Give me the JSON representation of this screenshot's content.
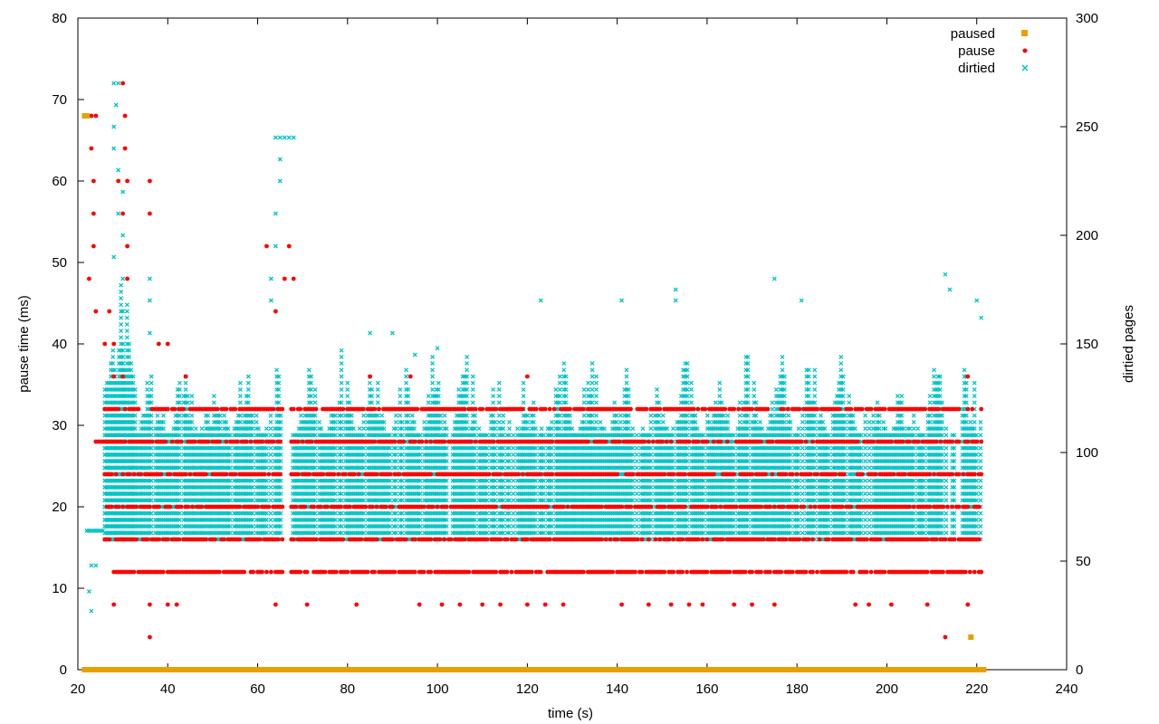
{
  "chart_data": {
    "type": "scatter",
    "xlabel": "time (s)",
    "ylabel": "pause time (ms)",
    "y2label": "dirtied pages",
    "xlim": [
      20,
      240
    ],
    "ylim": [
      0,
      80
    ],
    "y2lim": [
      0,
      300
    ],
    "x_ticks": [
      20,
      40,
      60,
      80,
      100,
      120,
      140,
      160,
      180,
      200,
      220,
      240
    ],
    "y_ticks": [
      0,
      10,
      20,
      30,
      40,
      50,
      60,
      70,
      80
    ],
    "y2_ticks": [
      0,
      50,
      100,
      150,
      200,
      250,
      300
    ],
    "grid": false,
    "legend_position": "top-right",
    "legend": [
      "paused",
      "pause",
      "dirtied"
    ],
    "series": [
      {
        "name": "paused",
        "axis": "y",
        "marker": "square",
        "color": "#e8a000",
        "points": [
          [
            21.5,
            68
          ],
          [
            22.0,
            68
          ],
          [
            218.7,
            4
          ],
          [
            21.5,
            0
          ],
          [
            40,
            0
          ],
          [
            60,
            0
          ],
          [
            80,
            0
          ],
          [
            100,
            0
          ],
          [
            120,
            0
          ],
          [
            140,
            0
          ],
          [
            160,
            0
          ],
          [
            180,
            0
          ],
          [
            200,
            0
          ],
          [
            221.5,
            0
          ]
        ]
      },
      {
        "name": "pause",
        "axis": "y",
        "marker": "circle",
        "color": "#ff0000",
        "points": [
          [
            22,
            68
          ],
          [
            23,
            68
          ],
          [
            24,
            68
          ],
          [
            23,
            64
          ],
          [
            23.5,
            60
          ],
          [
            23.5,
            56
          ],
          [
            23.5,
            52
          ],
          [
            22.5,
            48
          ],
          [
            24,
            44
          ],
          [
            27,
            44
          ],
          [
            30,
            72
          ],
          [
            30.5,
            68
          ],
          [
            29,
            60
          ],
          [
            31,
            60
          ],
          [
            30,
            56
          ],
          [
            31,
            52
          ],
          [
            30.5,
            64
          ],
          [
            31,
            48
          ],
          [
            36,
            60
          ],
          [
            36,
            56
          ],
          [
            36,
            4
          ],
          [
            26,
            40
          ],
          [
            28,
            40
          ],
          [
            38,
            40
          ],
          [
            40,
            40
          ],
          [
            28,
            36
          ],
          [
            30,
            36
          ],
          [
            44,
            36
          ],
          [
            85,
            36
          ],
          [
            94,
            36
          ],
          [
            120,
            36
          ],
          [
            62,
            52
          ],
          [
            64,
            44
          ],
          [
            67,
            52
          ],
          [
            66,
            48
          ],
          [
            68,
            48
          ],
          [
            40,
            8
          ],
          [
            42,
            8
          ],
          [
            64,
            8
          ],
          [
            71,
            8
          ],
          [
            82,
            8
          ],
          [
            96,
            8
          ],
          [
            101,
            8
          ],
          [
            105,
            8
          ],
          [
            110,
            8
          ],
          [
            114,
            8
          ],
          [
            120,
            8
          ],
          [
            124,
            8
          ],
          [
            128,
            8
          ],
          [
            141,
            8
          ],
          [
            147,
            8
          ],
          [
            152,
            8
          ],
          [
            156,
            8
          ],
          [
            159,
            8
          ],
          [
            166,
            8
          ],
          [
            170,
            8
          ],
          [
            175,
            8
          ],
          [
            193,
            8
          ],
          [
            196,
            8
          ],
          [
            201,
            8
          ],
          [
            209,
            8
          ],
          [
            218,
            8
          ],
          [
            213,
            4
          ],
          [
            218,
            36
          ],
          [
            28,
            8
          ],
          [
            36,
            8
          ]
        ],
        "bands": [
          {
            "y": 32,
            "from": 26,
            "to": 221,
            "gaps": [
              [
                65.5,
                67.5
              ]
            ]
          },
          {
            "y": 24,
            "from": 26,
            "to": 221,
            "gaps": [
              [
                65.5,
                67.5
              ]
            ]
          },
          {
            "y": 20,
            "from": 26,
            "to": 221,
            "gaps": [
              [
                65.5,
                67.5
              ]
            ]
          },
          {
            "y": 16,
            "from": 26,
            "to": 221,
            "gaps": [
              [
                65.5,
                67.5
              ]
            ]
          },
          {
            "y": 12,
            "from": 28,
            "to": 221,
            "gaps": [
              [
                65.5,
                67.5
              ]
            ]
          },
          {
            "y": 28,
            "from": 24,
            "to": 221,
            "gaps": [
              [
                65.5,
                67.5
              ]
            ]
          }
        ]
      },
      {
        "name": "dirtied",
        "axis": "y2",
        "marker": "x",
        "color": "#00c4c4",
        "points": [
          [
            22,
            64
          ],
          [
            23,
            48
          ],
          [
            24,
            48
          ],
          [
            22.5,
            36
          ],
          [
            23,
            27
          ],
          [
            28,
            270
          ],
          [
            29,
            270
          ],
          [
            28.5,
            260
          ],
          [
            28,
            250
          ],
          [
            28,
            240
          ],
          [
            29,
            230
          ],
          [
            30,
            220
          ],
          [
            29,
            210
          ],
          [
            30,
            200
          ],
          [
            28,
            190
          ],
          [
            30,
            180
          ],
          [
            30,
            165
          ],
          [
            36,
            180
          ],
          [
            36,
            170
          ],
          [
            36,
            155
          ],
          [
            64,
            245
          ],
          [
            65,
            245
          ],
          [
            66,
            245
          ],
          [
            67,
            245
          ],
          [
            68,
            245
          ],
          [
            65,
            235
          ],
          [
            65,
            225
          ],
          [
            64,
            210
          ],
          [
            64,
            195
          ],
          [
            63,
            180
          ],
          [
            63,
            170
          ],
          [
            123,
            170
          ],
          [
            141,
            170
          ],
          [
            153,
            175
          ],
          [
            153,
            170
          ],
          [
            175,
            180
          ],
          [
            181,
            170
          ],
          [
            213,
            182
          ],
          [
            214,
            175
          ],
          [
            220,
            170
          ],
          [
            221,
            162
          ],
          [
            85,
            155
          ],
          [
            90,
            155
          ],
          [
            95,
            145
          ],
          [
            100,
            148
          ]
        ],
        "bands": [
          {
            "from": 26,
            "to": 221,
            "y_min": 60,
            "y_max": 150,
            "gaps": [
              [
                65.5,
                67.5
              ]
            ]
          },
          {
            "from": 22,
            "to": 26,
            "y_min": 64,
            "y_max": 64,
            "gaps": []
          },
          {
            "from": 26,
            "to": 33,
            "y_min": 60,
            "y_max": 190,
            "gaps": []
          }
        ]
      }
    ]
  }
}
